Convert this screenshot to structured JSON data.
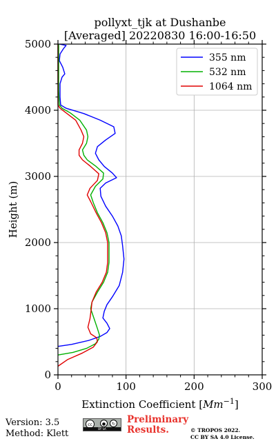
{
  "chart_data": {
    "type": "line",
    "title": [
      "pollyxt_tjk at Dushanbe",
      "[Averaged] 20220830 16:00-16:50"
    ],
    "xlabel": "Extinction Coefficient [Mm⁻¹]",
    "xlabel_base": "Extinction Coefficient [",
    "xlabel_unit": "Mm",
    "xlabel_exp": "−1",
    "xlabel_end": "]",
    "ylabel": "Height (m)",
    "xlim": [
      0,
      300
    ],
    "ylim": [
      0,
      5000
    ],
    "xticks": [
      0,
      100,
      200,
      300
    ],
    "yticks": [
      0,
      1000,
      2000,
      3000,
      4000,
      5000
    ],
    "grid": true,
    "legend_position": "top-right",
    "series": [
      {
        "name": "355 nm",
        "color": "#0000ff",
        "points": [
          [
            0,
            430
          ],
          [
            20,
            460
          ],
          [
            45,
            520
          ],
          [
            62,
            580
          ],
          [
            72,
            640
          ],
          [
            76,
            700
          ],
          [
            72,
            780
          ],
          [
            66,
            860
          ],
          [
            68,
            960
          ],
          [
            72,
            1060
          ],
          [
            80,
            1180
          ],
          [
            90,
            1350
          ],
          [
            95,
            1550
          ],
          [
            97,
            1750
          ],
          [
            95,
            1950
          ],
          [
            93,
            2100
          ],
          [
            88,
            2250
          ],
          [
            80,
            2400
          ],
          [
            70,
            2550
          ],
          [
            63,
            2700
          ],
          [
            62,
            2820
          ],
          [
            70,
            2900
          ],
          [
            86,
            2980
          ],
          [
            80,
            3050
          ],
          [
            68,
            3150
          ],
          [
            60,
            3250
          ],
          [
            55,
            3350
          ],
          [
            58,
            3450
          ],
          [
            70,
            3550
          ],
          [
            84,
            3650
          ],
          [
            82,
            3750
          ],
          [
            62,
            3850
          ],
          [
            38,
            3950
          ],
          [
            12,
            4030
          ],
          [
            4,
            4080
          ],
          [
            3,
            4200
          ],
          [
            3,
            4400
          ],
          [
            6,
            4500
          ],
          [
            10,
            4550
          ],
          [
            7,
            4650
          ],
          [
            2,
            4750
          ],
          [
            3,
            4850
          ],
          [
            8,
            4930
          ],
          [
            12,
            4980
          ],
          [
            2,
            5000
          ]
        ]
      },
      {
        "name": "532 nm",
        "color": "#00b000",
        "points": [
          [
            0,
            300
          ],
          [
            22,
            340
          ],
          [
            42,
            400
          ],
          [
            55,
            470
          ],
          [
            60,
            540
          ],
          [
            61,
            600
          ],
          [
            58,
            700
          ],
          [
            53,
            850
          ],
          [
            48,
            1000
          ],
          [
            50,
            1100
          ],
          [
            58,
            1250
          ],
          [
            67,
            1400
          ],
          [
            73,
            1550
          ],
          [
            75,
            1700
          ],
          [
            75,
            1850
          ],
          [
            75,
            2000
          ],
          [
            72,
            2150
          ],
          [
            66,
            2300
          ],
          [
            58,
            2450
          ],
          [
            52,
            2600
          ],
          [
            48,
            2720
          ],
          [
            55,
            2850
          ],
          [
            66,
            2960
          ],
          [
            67,
            3050
          ],
          [
            56,
            3150
          ],
          [
            43,
            3250
          ],
          [
            38,
            3320
          ],
          [
            36,
            3400
          ],
          [
            42,
            3500
          ],
          [
            44,
            3600
          ],
          [
            42,
            3700
          ],
          [
            32,
            3850
          ],
          [
            18,
            3960
          ],
          [
            6,
            4030
          ],
          [
            2,
            4080
          ],
          [
            1,
            4300
          ],
          [
            1,
            4700
          ],
          [
            1,
            5000
          ]
        ]
      },
      {
        "name": "1064 nm",
        "color": "#e00000",
        "points": [
          [
            0,
            130
          ],
          [
            14,
            230
          ],
          [
            36,
            330
          ],
          [
            52,
            420
          ],
          [
            58,
            500
          ],
          [
            57,
            560
          ],
          [
            48,
            620
          ],
          [
            44,
            720
          ],
          [
            47,
            850
          ],
          [
            49,
            1000
          ],
          [
            50,
            1100
          ],
          [
            56,
            1250
          ],
          [
            65,
            1400
          ],
          [
            71,
            1550
          ],
          [
            73,
            1700
          ],
          [
            73,
            1850
          ],
          [
            73,
            2000
          ],
          [
            70,
            2150
          ],
          [
            64,
            2300
          ],
          [
            56,
            2450
          ],
          [
            48,
            2620
          ],
          [
            43,
            2720
          ],
          [
            47,
            2820
          ],
          [
            58,
            2940
          ],
          [
            60,
            3040
          ],
          [
            48,
            3150
          ],
          [
            36,
            3250
          ],
          [
            31,
            3320
          ],
          [
            31,
            3400
          ],
          [
            36,
            3500
          ],
          [
            38,
            3600
          ],
          [
            34,
            3700
          ],
          [
            26,
            3850
          ],
          [
            12,
            3960
          ],
          [
            3,
            4030
          ],
          [
            0,
            4080
          ],
          [
            0,
            5000
          ]
        ]
      }
    ]
  },
  "footer": {
    "version": "Version: 3.5",
    "method": "Method: Klett",
    "preliminary": [
      "Preliminary",
      "Results."
    ],
    "copyright": [
      "© TROPOS 2022.",
      "CC BY SA 4.0 License."
    ],
    "cc_bar": "BY SA"
  }
}
